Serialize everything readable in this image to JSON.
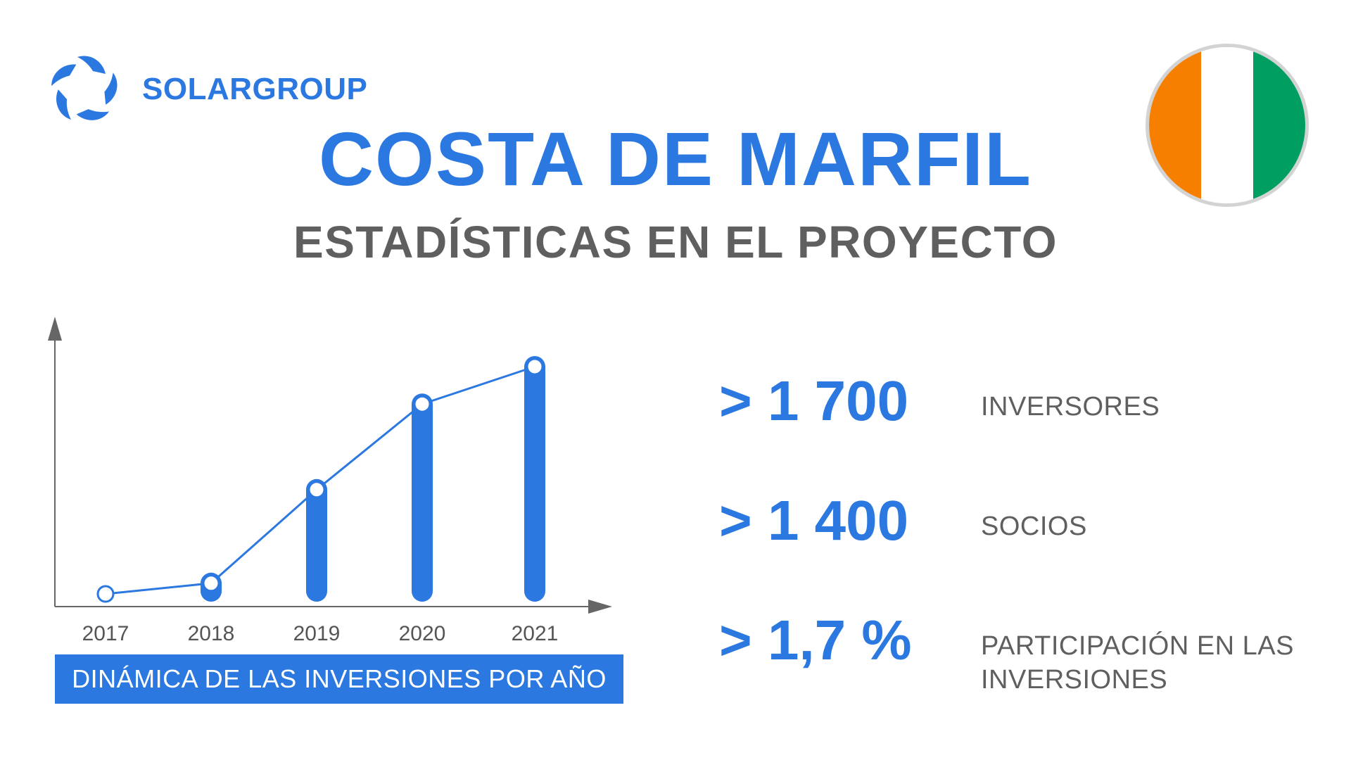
{
  "brand": {
    "name": "SOLARGROUP",
    "color": "#2b78e0",
    "logo_icon": "sun-swirl-icon"
  },
  "flag": {
    "country": "Côte d'Ivoire",
    "stripes": [
      "#f77f00",
      "#ffffff",
      "#009e60"
    ]
  },
  "title": "COSTA DE MARFIL",
  "subtitle": "ESTADÍSTICAS EN EL PROYECTO",
  "chart_data": {
    "type": "bar",
    "title": "DINÁMICA DE LAS INVERSIONES POR AÑO",
    "categories": [
      "2017",
      "2018",
      "2019",
      "2020",
      "2021"
    ],
    "values": [
      0,
      4,
      39,
      71,
      85
    ],
    "ylim": [
      0,
      100
    ],
    "overlay_line": true,
    "grid": false,
    "legend": "none",
    "colors": {
      "bar": "#2b78e0",
      "line": "#2b78e0",
      "axis": "#666666",
      "tick_label": "#555555"
    }
  },
  "stats": [
    {
      "value": "> 1 700",
      "label": "INVERSORES"
    },
    {
      "value": "> 1 400",
      "label": "SOCIOS"
    },
    {
      "value": "> 1,7 %",
      "label": "PARTICIPACIÓN EN LAS INVERSIONES"
    }
  ]
}
